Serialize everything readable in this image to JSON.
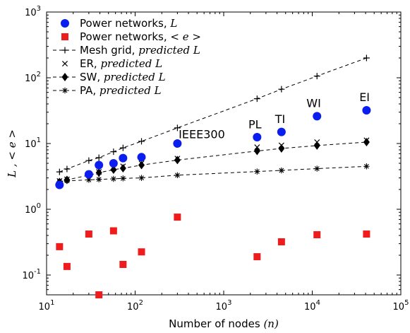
{
  "chart_data": {
    "type": "scatter",
    "xlabel": "Number of nodes",
    "xlabel_var": "(n)",
    "ylabel": "L , < e >",
    "xscale": "log",
    "yscale": "log",
    "xlim": [
      10,
      100000
    ],
    "ylim": [
      0.05,
      1000
    ],
    "x_ticks": [
      {
        "value": 10,
        "base": "10",
        "exp": "1"
      },
      {
        "value": 100,
        "base": "10",
        "exp": "2"
      },
      {
        "value": 1000,
        "base": "10",
        "exp": "3"
      },
      {
        "value": 10000,
        "base": "10",
        "exp": "4"
      },
      {
        "value": 100000,
        "base": "10",
        "exp": "5"
      }
    ],
    "y_ticks": [
      {
        "value": 0.1,
        "base": "10",
        "exp": "-1"
      },
      {
        "value": 1,
        "base": "10",
        "exp": "0"
      },
      {
        "value": 10,
        "base": "10",
        "exp": "1"
      },
      {
        "value": 100,
        "base": "10",
        "exp": "2"
      },
      {
        "value": 1000,
        "base": "10",
        "exp": "3"
      }
    ],
    "legend_position": "top-left",
    "series": [
      {
        "name": "Power networks, L",
        "marker": "circle",
        "color": "#0a1ef0",
        "line": false,
        "x": [
          14,
          30,
          39,
          57,
          73,
          118,
          300,
          2383,
          4490,
          11313,
          41000
        ],
        "y": [
          2.35,
          3.4,
          4.7,
          5.0,
          6.0,
          6.2,
          10.0,
          12.5,
          15.0,
          26.0,
          32.0
        ]
      },
      {
        "name": "Power networks, < e >",
        "marker": "square",
        "color": "#ee1c1c",
        "line": false,
        "x": [
          14,
          17,
          30,
          39,
          57,
          73,
          118,
          300,
          2383,
          4490,
          11313,
          41000
        ],
        "y": [
          0.27,
          0.135,
          0.42,
          0.05,
          0.47,
          0.145,
          0.225,
          0.76,
          0.19,
          0.32,
          0.41,
          0.42
        ]
      },
      {
        "name": "Mesh grid, predicted L",
        "marker": "plus",
        "color": "#000000",
        "line": true,
        "x": [
          14,
          17,
          30,
          39,
          57,
          73,
          118,
          300,
          2383,
          4490,
          11313,
          41000
        ],
        "y": [
          3.7,
          4.1,
          5.5,
          6.1,
          7.5,
          8.6,
          10.8,
          17.3,
          48.0,
          67.0,
          106.0,
          200.0
        ]
      },
      {
        "name": "ER, predicted L",
        "marker": "x",
        "color": "#000000",
        "line": false,
        "x": [
          14,
          17,
          30,
          39,
          57,
          73,
          118,
          300,
          2383,
          4490,
          11313,
          41000
        ],
        "y": [
          2.7,
          2.85,
          3.5,
          3.7,
          4.2,
          4.5,
          5.0,
          5.9,
          8.8,
          9.4,
          10.5,
          11.2
        ]
      },
      {
        "name": "SW, predicted L",
        "marker": "diamond",
        "color": "#000000",
        "line": true,
        "x": [
          14,
          17,
          30,
          39,
          57,
          73,
          118,
          300,
          2383,
          4490,
          11313,
          41000
        ],
        "y": [
          2.6,
          2.8,
          3.3,
          3.6,
          4.0,
          4.2,
          4.7,
          5.6,
          7.7,
          8.4,
          9.3,
          10.5
        ]
      },
      {
        "name": "PA, predicted L",
        "marker": "asterisk",
        "color": "#000000",
        "line": true,
        "x": [
          14,
          17,
          30,
          39,
          57,
          73,
          118,
          300,
          2383,
          4490,
          11313,
          41000
        ],
        "y": [
          2.6,
          2.7,
          2.8,
          2.85,
          2.9,
          2.95,
          3.0,
          3.3,
          3.75,
          3.9,
          4.15,
          4.5
        ]
      }
    ],
    "annotations": [
      {
        "text": "IEEE300",
        "x": 310,
        "y": 12.0
      },
      {
        "text": "PL",
        "x": 1900,
        "y": 17.0
      },
      {
        "text": "TI",
        "x": 3800,
        "y": 20.5
      },
      {
        "text": "WI",
        "x": 8600,
        "y": 36.0
      },
      {
        "text": "EI",
        "x": 34000,
        "y": 44.0
      }
    ]
  }
}
